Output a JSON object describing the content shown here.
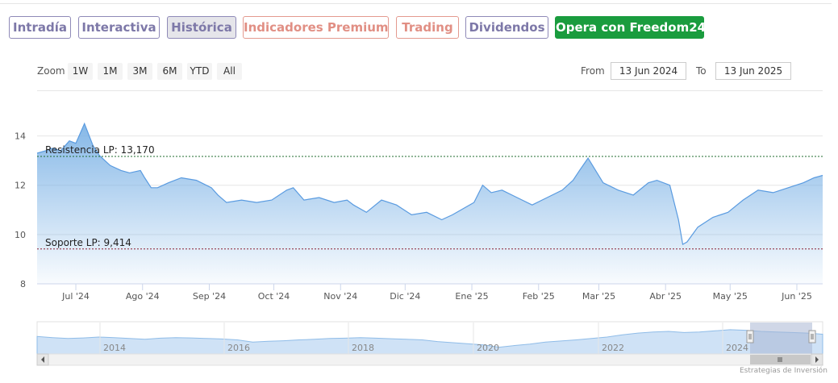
{
  "tabs": [
    {
      "label": "Intradía",
      "style": "purple"
    },
    {
      "label": "Interactiva",
      "style": "purple"
    },
    {
      "label": "Histórica",
      "style": "active"
    },
    {
      "label": "Indicadores Premium",
      "style": "salmon"
    },
    {
      "label": "Trading",
      "style": "salmon"
    },
    {
      "label": "Dividendos",
      "style": "purple"
    },
    {
      "label": "Opera con Freedom24",
      "style": "green"
    }
  ],
  "zoom": {
    "label": "Zoom",
    "buttons": [
      "1W",
      "1M",
      "3M",
      "6M",
      "YTD",
      "All"
    ]
  },
  "range": {
    "from_label": "From",
    "from_value": "13 Jun 2024",
    "to_label": "To",
    "to_value": "13 Jun 2025"
  },
  "chart_data": {
    "type": "area",
    "ylim": [
      8,
      15
    ],
    "y_ticks": [
      8,
      10,
      12,
      14
    ],
    "x_ticks": [
      "Jul '24",
      "Ago '24",
      "Sep '24",
      "Oct '24",
      "Nov '24",
      "Dic '24",
      "Ene '25",
      "Feb '25",
      "Mar '25",
      "Abr '25",
      "May '25",
      "Jun '25"
    ],
    "series": [
      {
        "x": [
          "2024-06-13",
          "2024-06-17",
          "2024-06-20",
          "2024-06-24",
          "2024-06-26",
          "2024-06-28",
          "2024-07-01",
          "2024-07-03",
          "2024-07-05",
          "2024-07-09",
          "2024-07-12",
          "2024-07-17",
          "2024-07-22",
          "2024-07-26",
          "2024-07-31",
          "2024-08-02",
          "2024-08-05",
          "2024-08-08",
          "2024-08-13",
          "2024-08-19",
          "2024-08-26",
          "2024-09-02",
          "2024-09-05",
          "2024-09-09",
          "2024-09-16",
          "2024-09-23",
          "2024-09-30",
          "2024-10-07",
          "2024-10-10",
          "2024-10-15",
          "2024-10-22",
          "2024-10-29",
          "2024-11-04",
          "2024-11-07",
          "2024-11-13",
          "2024-11-20",
          "2024-11-27",
          "2024-12-04",
          "2024-12-11",
          "2024-12-18",
          "2024-12-23",
          "2025-01-02",
          "2025-01-06",
          "2025-01-10",
          "2025-01-15",
          "2025-01-22",
          "2025-01-29",
          "2025-02-05",
          "2025-02-12",
          "2025-02-17",
          "2025-02-20",
          "2025-02-24",
          "2025-03-03",
          "2025-03-10",
          "2025-03-17",
          "2025-03-24",
          "2025-03-28",
          "2025-04-03",
          "2025-04-07",
          "2025-04-09",
          "2025-04-11",
          "2025-04-16",
          "2025-04-23",
          "2025-04-30",
          "2025-05-07",
          "2025-05-14",
          "2025-05-21",
          "2025-05-28",
          "2025-06-04",
          "2025-06-09",
          "2025-06-13"
        ],
        "values": [
          13.3,
          13.4,
          13.5,
          13.4,
          13.6,
          13.8,
          13.7,
          14.1,
          14.5,
          13.6,
          13.2,
          12.8,
          12.6,
          12.5,
          12.6,
          12.3,
          11.9,
          11.9,
          12.1,
          12.3,
          12.2,
          11.9,
          11.6,
          11.3,
          11.4,
          11.3,
          11.4,
          11.8,
          11.9,
          11.4,
          11.5,
          11.3,
          11.4,
          11.2,
          10.9,
          11.4,
          11.2,
          10.8,
          10.9,
          10.6,
          10.8,
          11.3,
          12.0,
          11.7,
          11.8,
          11.5,
          11.2,
          11.5,
          11.8,
          12.2,
          12.6,
          13.1,
          12.1,
          11.8,
          11.6,
          12.1,
          12.2,
          12.0,
          10.6,
          9.6,
          9.7,
          10.3,
          10.7,
          10.9,
          11.4,
          11.8,
          11.7,
          11.9,
          12.1,
          12.3,
          12.4
        ]
      }
    ],
    "lines": [
      {
        "label": "Resistencia LP: 13,170",
        "value": 13.17,
        "color": "#1f6b2e"
      },
      {
        "label": "Soporte LP: 9,414",
        "value": 9.414,
        "color": "#8b1e32"
      }
    ],
    "area_color": "#7fb4e6",
    "line_color": "#5a9be0"
  },
  "navigator": {
    "years": [
      "2014",
      "2016",
      "2018",
      "2020",
      "2022",
      "2024"
    ]
  },
  "credits": "Estrategias de Inversión"
}
